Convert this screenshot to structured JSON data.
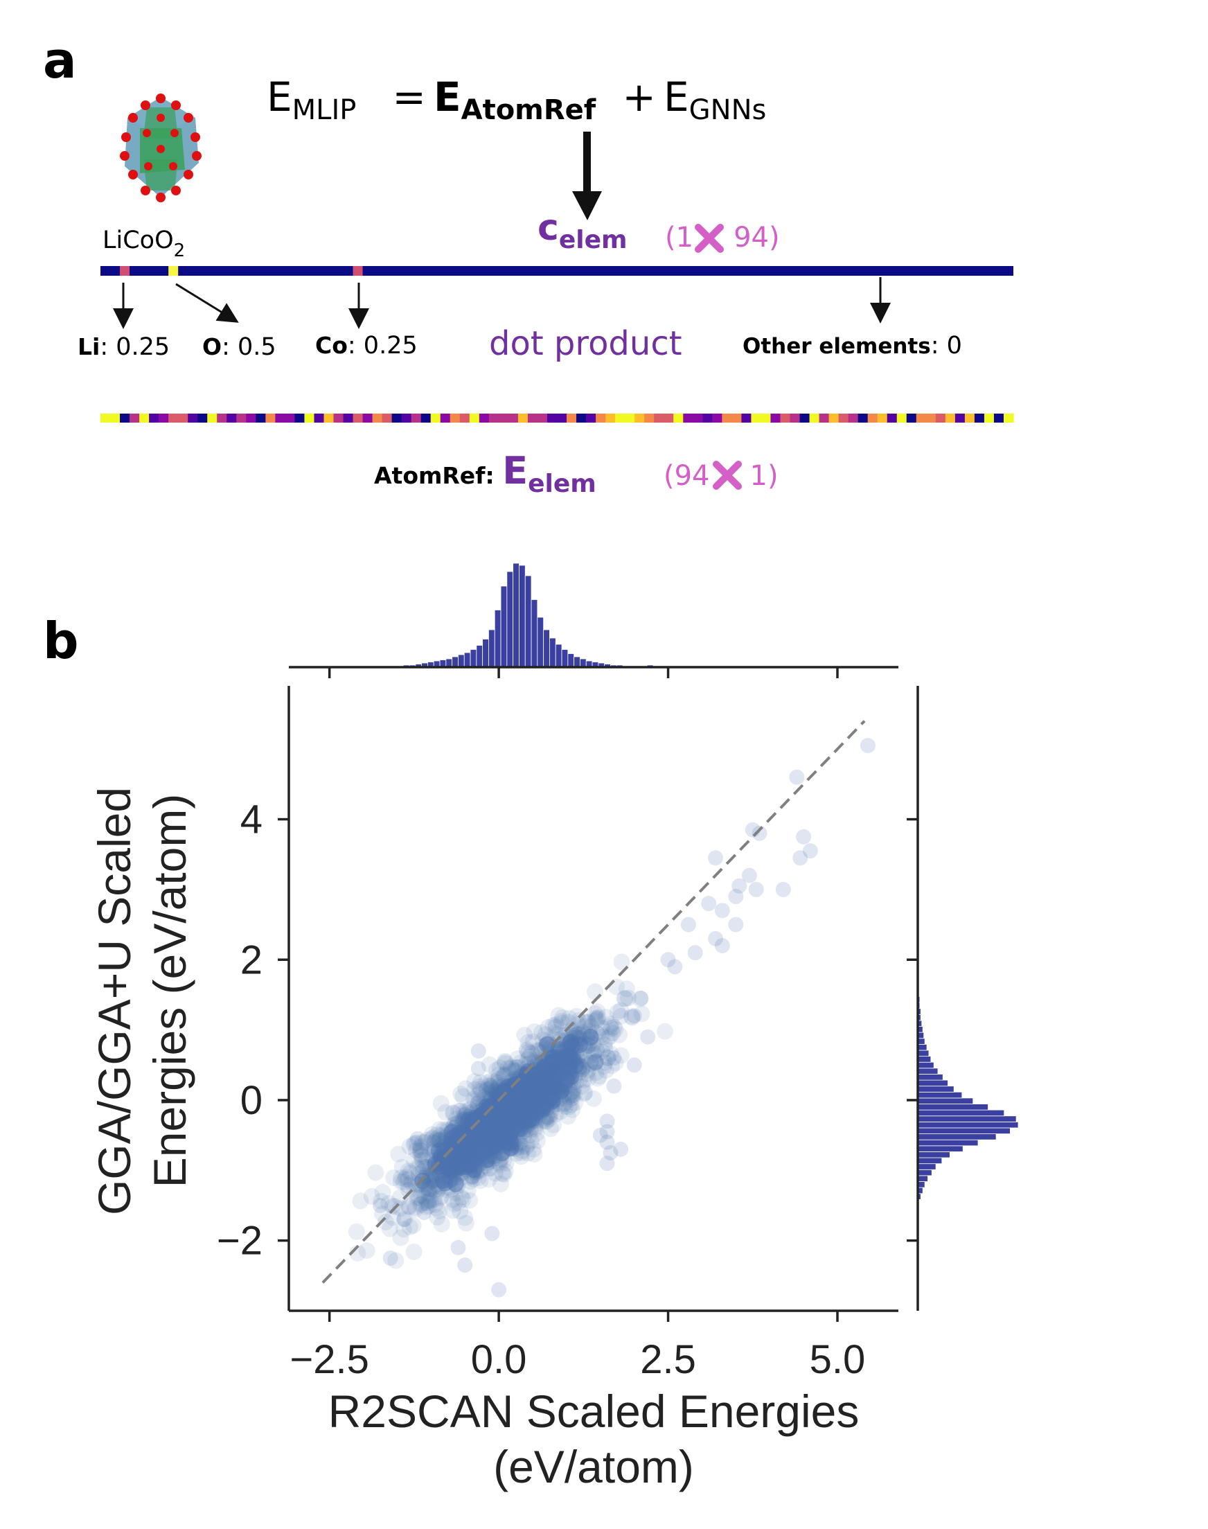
{
  "panel_a": {
    "label": "a",
    "equation": {
      "e": "E",
      "mlip": "MLIP",
      "eq": " = ",
      "atomref_e": "E",
      "atomref_sub": "AtomRef",
      "plus": " + ",
      "gnn_e": "E",
      "gnn_sub": "GNNs"
    },
    "compound": {
      "name": "LiCoO",
      "sub": "2"
    },
    "c_elem": {
      "c": "c",
      "sub": "elem",
      "dims_open": "(1",
      "dims_close": "94)"
    },
    "composition": [
      {
        "el": "Li",
        "val": ": 0.25"
      },
      {
        "el": "O",
        "val": ": 0.5"
      },
      {
        "el": "Co",
        "val": ": 0.25"
      },
      {
        "el": "Other elements",
        "val": ": 0"
      }
    ],
    "dot_product": "dot product",
    "atomref": {
      "prefix": "AtomRef: ",
      "e": "E",
      "sub": "elem",
      "dims_open": "(94",
      "dims_close": "1)"
    },
    "composition_vector_colors": {
      "base": "#0b0b86",
      "Li": "#d24f74",
      "O": "#f5f542",
      "Co": "#d24f74"
    },
    "atomref_palette": [
      "#0d0887",
      "#5302a3",
      "#8b0aa5",
      "#b83289",
      "#db5c68",
      "#f48849",
      "#febd2a",
      "#f0f921"
    ]
  },
  "panel_b": {
    "label": "b",
    "chart_data": {
      "type": "scatter",
      "title": "",
      "xlabel": "R2SCAN Scaled Energies (eV/atom)",
      "xlabel_lines": [
        "R2SCAN Scaled Energies",
        "(eV/atom)"
      ],
      "ylabel": "GGA/GGA+U Scaled Energies (eV/atom)",
      "ylabel_lines": [
        "GGA/GGA+U Scaled",
        "Energies (eV/atom)"
      ],
      "xlim": [
        -3.1,
        5.9
      ],
      "ylim": [
        -3.0,
        5.9
      ],
      "xticks": [
        -2.5,
        0.0,
        2.5,
        5.0
      ],
      "xtick_labels": [
        "−2.5",
        "0.0",
        "2.5",
        "5.0"
      ],
      "yticks": [
        -2,
        0,
        2,
        4
      ],
      "ytick_labels": [
        "−2",
        "0",
        "2",
        "4"
      ],
      "point_color": "#4c72b0",
      "diagonal": {
        "from": [
          -2.6,
          -2.6
        ],
        "to": [
          5.4,
          5.4
        ],
        "color": "#808080",
        "style": "dashed"
      },
      "outlier_points": [
        [
          5.45,
          5.05
        ],
        [
          4.4,
          4.6
        ],
        [
          3.75,
          3.85
        ],
        [
          3.85,
          3.8
        ],
        [
          4.5,
          3.75
        ],
        [
          4.6,
          3.55
        ],
        [
          4.45,
          3.45
        ],
        [
          3.2,
          3.45
        ],
        [
          3.7,
          3.2
        ],
        [
          4.2,
          3.0
        ],
        [
          3.55,
          3.05
        ],
        [
          3.8,
          3.0
        ],
        [
          3.5,
          2.9
        ],
        [
          3.3,
          2.7
        ],
        [
          3.1,
          2.8
        ],
        [
          2.8,
          2.5
        ],
        [
          3.5,
          2.5
        ],
        [
          3.2,
          2.3
        ],
        [
          2.9,
          2.1
        ],
        [
          3.3,
          2.2
        ],
        [
          2.5,
          2.0
        ],
        [
          2.6,
          1.9
        ],
        [
          2.1,
          1.45
        ],
        [
          2.0,
          1.2
        ],
        [
          2.2,
          0.9
        ],
        [
          1.7,
          0.6
        ],
        [
          2.0,
          0.5
        ],
        [
          -0.3,
          0.7
        ],
        [
          -0.3,
          0.45
        ],
        [
          1.7,
          0.2
        ],
        [
          1.6,
          -0.3
        ],
        [
          1.6,
          -0.45
        ],
        [
          1.5,
          -0.5
        ],
        [
          1.6,
          -0.6
        ],
        [
          1.65,
          -0.75
        ],
        [
          1.6,
          -0.9
        ],
        [
          1.8,
          -0.7
        ],
        [
          -1.6,
          -2.25
        ],
        [
          -1.1,
          -1.6
        ],
        [
          -1.75,
          -1.5
        ],
        [
          -0.5,
          -2.35
        ],
        [
          0.0,
          -2.7
        ],
        [
          -0.6,
          -2.1
        ],
        [
          -0.1,
          -1.9
        ],
        [
          -1.2,
          -0.55
        ],
        [
          -0.9,
          -0.9
        ],
        [
          -1.4,
          -1.7
        ]
      ],
      "bulk_ellipse": {
        "center": [
          0.1,
          -0.2
        ],
        "major_axis_angle_deg": 41,
        "semi_major": 2.2,
        "semi_minor": 0.45
      },
      "top_hist": {
        "bin_start": -1.5,
        "bin_width": 0.09,
        "counts": [
          1,
          2,
          2,
          3,
          4,
          5,
          6,
          7,
          8,
          10,
          12,
          14,
          17,
          21,
          27,
          36,
          55,
          78,
          92,
          100,
          98,
          88,
          65,
          48,
          36,
          28,
          22,
          17,
          13,
          10,
          8,
          6,
          5,
          4,
          3,
          2,
          2,
          1,
          1,
          0,
          0,
          2,
          1
        ]
      },
      "right_hist": {
        "bin_start": -1.5,
        "bin_width": 0.085,
        "counts": [
          1,
          3,
          5,
          7,
          10,
          14,
          18,
          24,
          32,
          45,
          60,
          78,
          92,
          100,
          98,
          86,
          70,
          55,
          44,
          36,
          30,
          25,
          20,
          16,
          13,
          11,
          9,
          7,
          6,
          5,
          4,
          3,
          3,
          2,
          2,
          1,
          1,
          1
        ]
      }
    }
  }
}
